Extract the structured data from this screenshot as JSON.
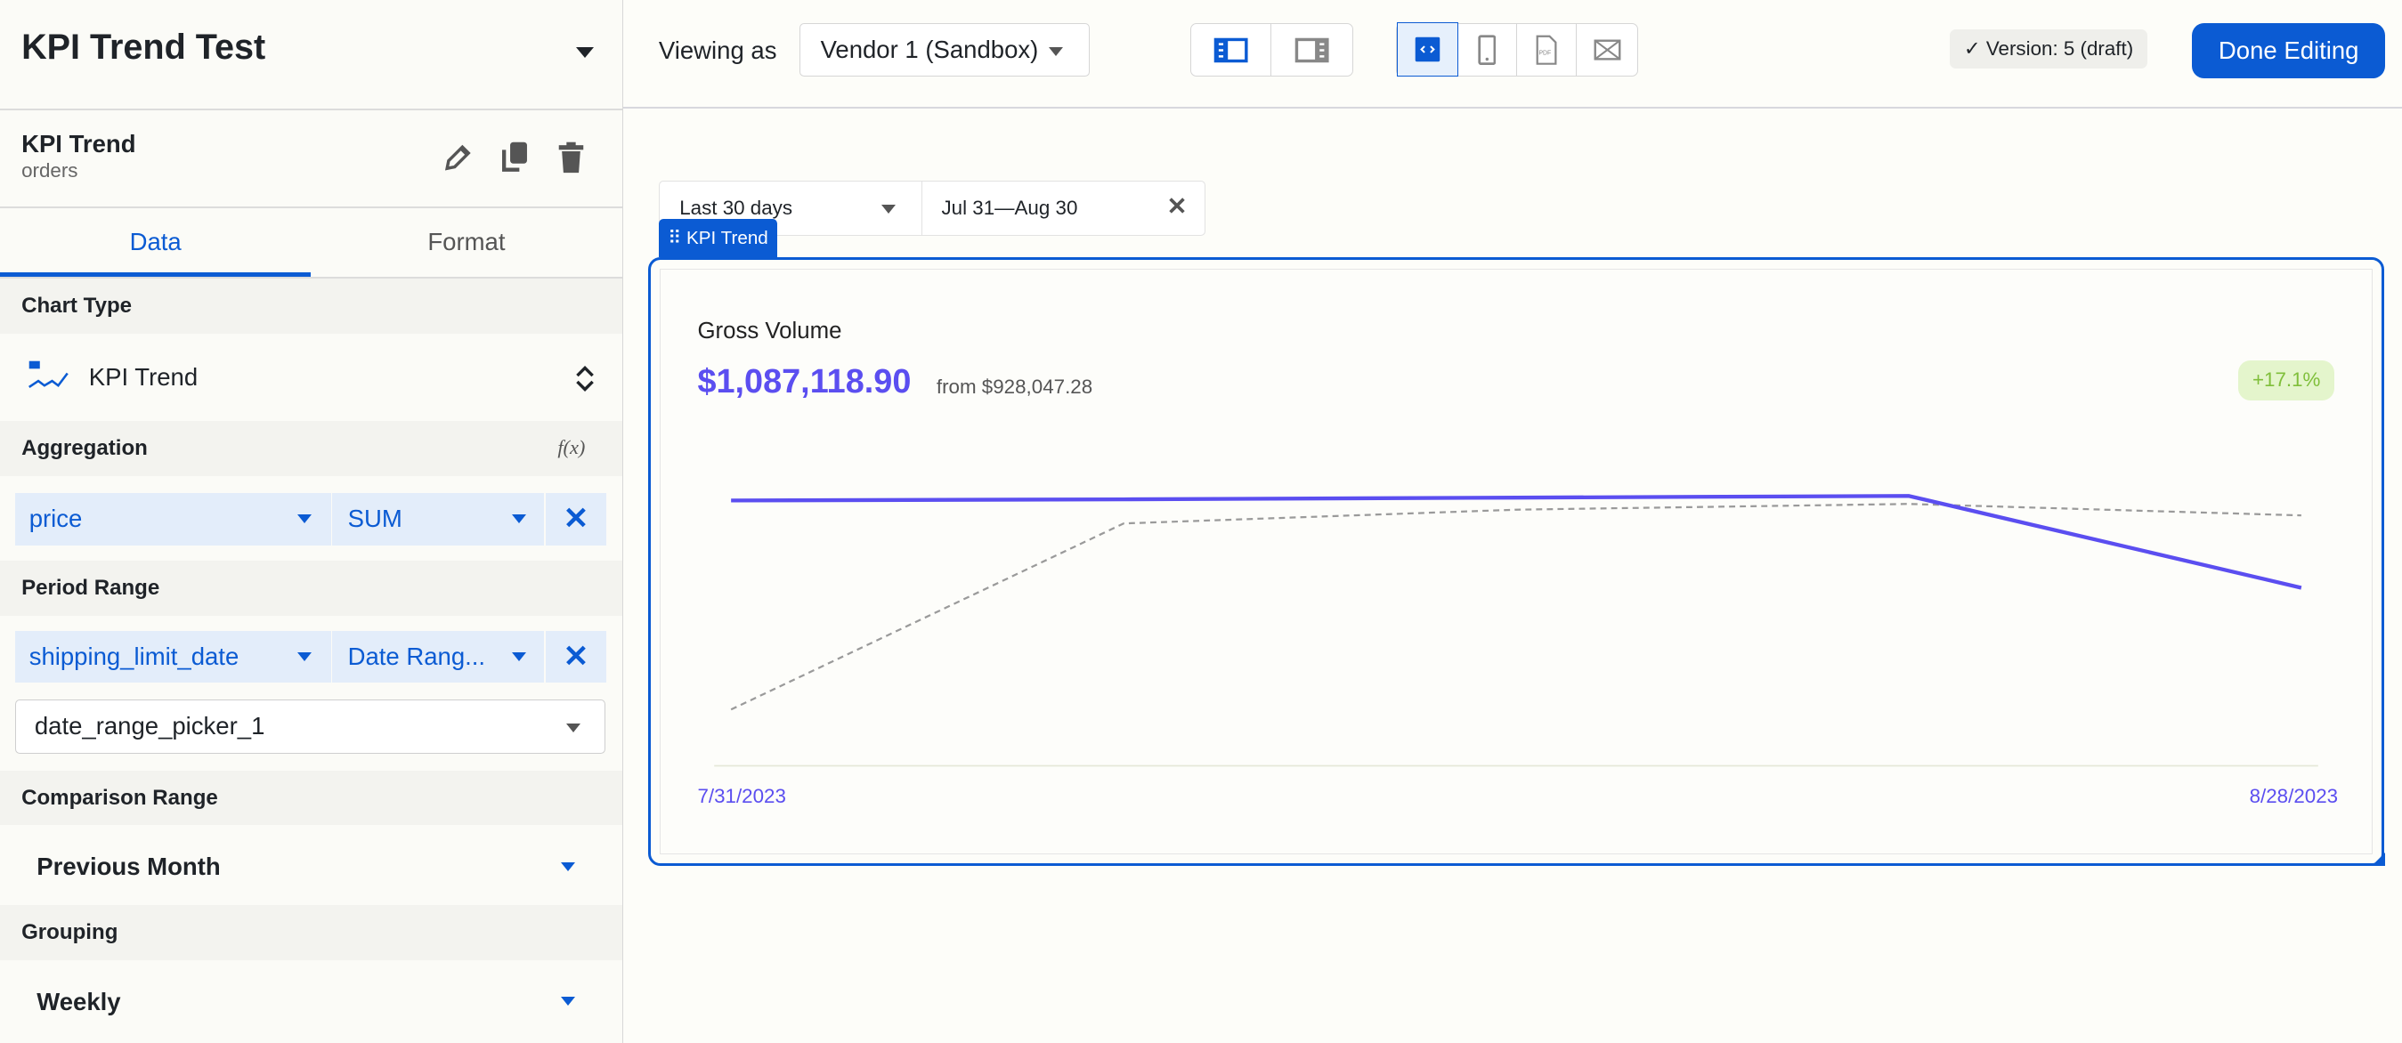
{
  "sidebar": {
    "app_title": "KPI Trend Test",
    "component": {
      "name": "KPI Trend",
      "source": "orders"
    },
    "tabs": [
      {
        "label": "Data",
        "active": true
      },
      {
        "label": "Format",
        "active": false
      }
    ],
    "chart_type": {
      "label": "Chart Type",
      "value": "KPI Trend",
      "icon_text": "123"
    },
    "aggregation": {
      "label": "Aggregation",
      "field": "price",
      "func": "SUM",
      "fx_label": "f(x)"
    },
    "period_range": {
      "label": "Period Range",
      "field": "shipping_limit_date",
      "type": "Date Rang...",
      "picker": "date_range_picker_1"
    },
    "comparison_range": {
      "label": "Comparison Range",
      "value": "Previous Month"
    },
    "grouping": {
      "label": "Grouping",
      "value": "Weekly"
    }
  },
  "toolbar": {
    "viewing_as_label": "Viewing as",
    "viewing_as_value": "Vendor 1 (Sandbox)",
    "version": "Version: 5 (draft)",
    "done_label": "Done Editing",
    "pdf_label": "PDF"
  },
  "canvas": {
    "date_filter": {
      "preset": "Last 30 days",
      "range": "Jul 31—Aug 30"
    },
    "component_tag": "KPI Trend",
    "kpi": {
      "title": "Gross Volume",
      "value": "$1,087,118.90",
      "comparison": "from $928,047.28",
      "change": "+17.1%"
    }
  },
  "colors": {
    "accent": "#0b5bd3",
    "series": "#5b4ef0",
    "comparison": "#9a9a9a",
    "positive_bg": "#e4f5cc",
    "positive_text": "#7fbf3a"
  },
  "chart_data": {
    "type": "line",
    "x_tick_labels": [
      "7/31/2023",
      "8/28/2023"
    ],
    "x": [
      "7/31/2023",
      "8/7/2023",
      "8/14/2023",
      "8/21/2023",
      "8/28/2023"
    ],
    "series": [
      {
        "values": [
          231000,
          232000,
          233500,
          235000,
          155000
        ],
        "style": "solid"
      },
      {
        "values": [
          49000,
          211000,
          223000,
          228000,
          218000
        ],
        "style": "dashed"
      }
    ],
    "ylim": [
      0,
      240000
    ],
    "grid": false
  }
}
